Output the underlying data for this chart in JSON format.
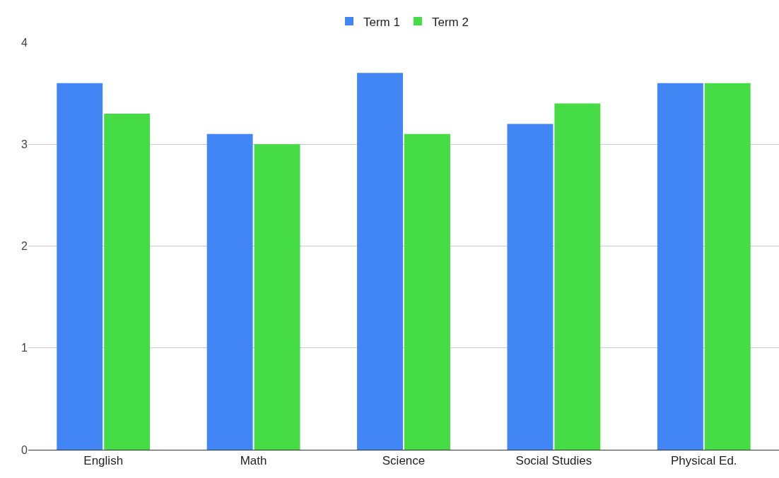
{
  "chart_data": {
    "type": "bar",
    "categories": [
      "English",
      "Math",
      "Science",
      "Social Studies",
      "Physical Ed."
    ],
    "series": [
      {
        "name": "Term 1",
        "color": "#4285f4",
        "values": [
          3.6,
          3.1,
          3.7,
          3.2,
          3.6
        ]
      },
      {
        "name": "Term 2",
        "color": "#46dc46",
        "values": [
          3.3,
          3.0,
          3.1,
          3.4,
          3.6
        ]
      }
    ],
    "ylim": [
      0,
      4
    ],
    "yticks": [
      0,
      1,
      2,
      3,
      4
    ],
    "grid": "y",
    "legend": "top"
  }
}
